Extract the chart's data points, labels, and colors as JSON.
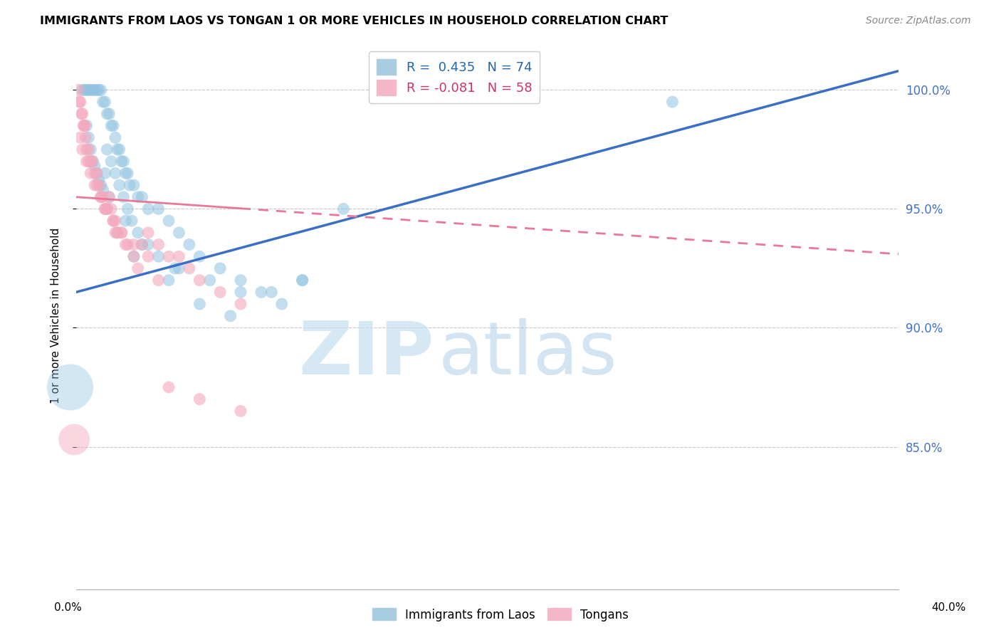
{
  "title": "IMMIGRANTS FROM LAOS VS TONGAN 1 OR MORE VEHICLES IN HOUSEHOLD CORRELATION CHART",
  "source": "Source: ZipAtlas.com",
  "ylabel": "1 or more Vehicles in Household",
  "xlim": [
    0.0,
    40.0
  ],
  "ylim": [
    79.0,
    102.0
  ],
  "y_ticks": [
    85.0,
    90.0,
    95.0,
    100.0
  ],
  "y_tick_labels": [
    "85.0%",
    "90.0%",
    "95.0%",
    "100.0%"
  ],
  "laos_color": "#91c4e0",
  "tongan_color": "#f4a8bc",
  "laos_line_color": "#3a6fc4",
  "tongan_line_color": "#e87898",
  "legend_label_blue": "R =  0.435   N = 74",
  "legend_label_pink": "R = -0.081   N = 58",
  "laos_x": [
    0.3,
    0.4,
    0.5,
    0.6,
    0.7,
    0.8,
    0.9,
    1.0,
    1.1,
    1.2,
    1.3,
    1.4,
    1.5,
    1.6,
    1.7,
    1.8,
    1.9,
    2.0,
    2.1,
    2.2,
    2.3,
    2.4,
    2.5,
    2.6,
    2.8,
    3.0,
    3.2,
    3.5,
    4.0,
    4.5,
    5.0,
    5.5,
    6.0,
    7.0,
    8.0,
    9.0,
    10.0,
    11.0,
    13.0,
    29.0,
    0.5,
    0.6,
    0.7,
    0.8,
    0.9,
    1.0,
    1.1,
    1.2,
    1.3,
    1.5,
    1.7,
    1.9,
    2.1,
    2.3,
    2.5,
    2.7,
    3.0,
    3.5,
    4.0,
    5.0,
    6.5,
    8.0,
    11.0,
    2.0,
    2.8,
    4.5,
    6.0,
    9.5,
    1.4,
    1.6,
    2.4,
    3.2,
    4.8,
    7.5
  ],
  "laos_y": [
    100.0,
    100.0,
    100.0,
    100.0,
    100.0,
    100.0,
    100.0,
    100.0,
    100.0,
    100.0,
    99.5,
    99.5,
    99.0,
    99.0,
    98.5,
    98.5,
    98.0,
    97.5,
    97.5,
    97.0,
    97.0,
    96.5,
    96.5,
    96.0,
    96.0,
    95.5,
    95.5,
    95.0,
    95.0,
    94.5,
    94.0,
    93.5,
    93.0,
    92.5,
    92.0,
    91.5,
    91.0,
    92.0,
    95.0,
    99.5,
    98.5,
    98.0,
    97.5,
    97.0,
    96.8,
    96.5,
    96.2,
    96.0,
    95.8,
    97.5,
    97.0,
    96.5,
    96.0,
    95.5,
    95.0,
    94.5,
    94.0,
    93.5,
    93.0,
    92.5,
    92.0,
    91.5,
    92.0,
    94.0,
    93.0,
    92.0,
    91.0,
    91.5,
    96.5,
    95.5,
    94.5,
    93.5,
    92.5,
    90.5
  ],
  "tongan_x": [
    0.1,
    0.15,
    0.2,
    0.25,
    0.3,
    0.35,
    0.4,
    0.45,
    0.5,
    0.6,
    0.7,
    0.8,
    0.9,
    1.0,
    1.1,
    1.2,
    1.3,
    1.4,
    1.5,
    1.6,
    1.7,
    1.8,
    1.9,
    2.0,
    2.2,
    2.5,
    2.8,
    3.2,
    3.5,
    4.0,
    4.5,
    5.0,
    5.5,
    6.0,
    7.0,
    8.0,
    0.2,
    0.3,
    0.5,
    0.7,
    0.9,
    1.2,
    1.5,
    1.8,
    2.2,
    2.8,
    3.5,
    4.5,
    6.0,
    8.0,
    0.4,
    0.6,
    1.0,
    1.4,
    1.9,
    2.4,
    3.0,
    4.0
  ],
  "tongan_y": [
    100.0,
    99.5,
    99.5,
    99.0,
    99.0,
    98.5,
    98.5,
    98.0,
    97.5,
    97.5,
    97.0,
    97.0,
    96.5,
    96.5,
    96.0,
    95.5,
    95.5,
    95.0,
    95.0,
    95.5,
    95.0,
    94.5,
    94.5,
    94.0,
    94.0,
    93.5,
    93.0,
    93.5,
    94.0,
    93.5,
    93.0,
    93.0,
    92.5,
    92.0,
    91.5,
    91.0,
    98.0,
    97.5,
    97.0,
    96.5,
    96.0,
    95.5,
    95.0,
    94.5,
    94.0,
    93.5,
    93.0,
    87.5,
    87.0,
    86.5,
    98.5,
    97.0,
    96.0,
    95.0,
    94.0,
    93.5,
    92.5,
    92.0
  ],
  "laos_line_x0": 0.0,
  "laos_line_x1": 40.0,
  "laos_line_y0": 91.5,
  "laos_line_y1": 100.8,
  "tongan_line_x0": 0.0,
  "tongan_line_x1": 40.0,
  "tongan_line_y0": 95.5,
  "tongan_line_y1": 93.1,
  "tongan_solid_end": 8.0,
  "grid_color": "#c8c8c8",
  "watermark_zip_color": "#c5dff0",
  "watermark_atlas_color": "#b0d0e8"
}
